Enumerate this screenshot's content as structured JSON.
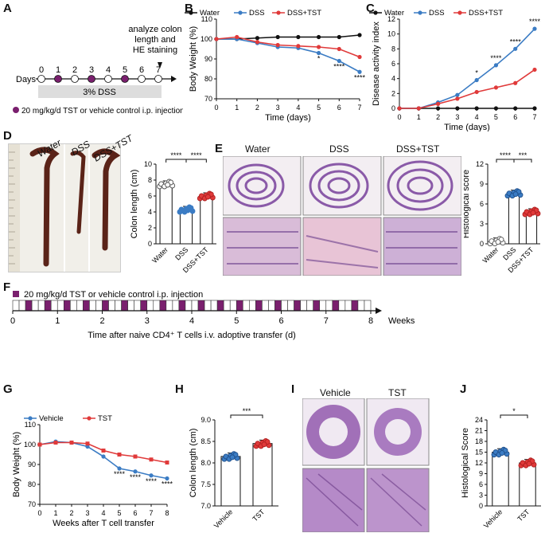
{
  "panel_labels": [
    "A",
    "B",
    "C",
    "D",
    "E",
    "F",
    "G",
    "H",
    "I",
    "J"
  ],
  "A": {
    "analyze": "analyze colon length and HE staining",
    "analyze_lines": [
      "analyze colon",
      "length and",
      "HE staining"
    ],
    "days_label": "Days",
    "days": [
      "0",
      "1",
      "2",
      "3",
      "4",
      "5",
      "6",
      "7"
    ],
    "injection_days": [
      1,
      3,
      5
    ],
    "dss_box": "3% DSS",
    "legend": "20 mg/kg/d TST or vehicle control i.p. injection"
  },
  "legend_top": {
    "water": "Water",
    "dss": "DSS",
    "dsstst": "DSS+TST"
  },
  "colors": {
    "water": "#111111",
    "dss": "#3b7cc4",
    "dsstst": "#e03a3a",
    "square": "#7a1f6e"
  },
  "chart_data": [
    {
      "id": "B",
      "type": "line",
      "ylabel": "Body Weight (%)",
      "xlabel": "Time (days)",
      "x": [
        0,
        1,
        2,
        3,
        4,
        5,
        6,
        7
      ],
      "ylim": [
        70,
        110
      ],
      "yticks": [
        70,
        80,
        90,
        100,
        110
      ],
      "series": [
        {
          "name": "Water",
          "values": [
            100,
            100,
            100.5,
            101,
            101,
            101,
            101,
            102
          ]
        },
        {
          "name": "DSS",
          "values": [
            100,
            100,
            98,
            96,
            95.5,
            93,
            89,
            83.5
          ]
        },
        {
          "name": "DSS+TST",
          "values": [
            100,
            101,
            98.5,
            97,
            96.5,
            96,
            95,
            91
          ]
        }
      ],
      "annotations": [
        "*",
        "****",
        "****"
      ]
    },
    {
      "id": "C",
      "type": "line",
      "ylabel": "Disease activity index",
      "xlabel": "Time (days)",
      "x": [
        0,
        1,
        2,
        3,
        4,
        5,
        6,
        7
      ],
      "ylim": [
        0,
        12
      ],
      "yticks": [
        0,
        2,
        4,
        6,
        8,
        10,
        12
      ],
      "series": [
        {
          "name": "Water",
          "values": [
            0,
            0,
            0,
            0,
            0,
            0,
            0,
            0
          ]
        },
        {
          "name": "DSS",
          "values": [
            0,
            0,
            0.8,
            1.8,
            3.8,
            5.8,
            8.0,
            10.7
          ]
        },
        {
          "name": "DSS+TST",
          "values": [
            0,
            0,
            0.6,
            1.3,
            2.2,
            2.8,
            3.4,
            5.2
          ]
        }
      ],
      "annotations": [
        "*",
        "****",
        "****",
        "****"
      ]
    },
    {
      "id": "D",
      "type": "bar",
      "ylabel": "Colon length (cm)",
      "categories": [
        "Water",
        "DSS",
        "DSS+TST"
      ],
      "values": [
        7.5,
        4.3,
        6.0
      ],
      "ylim": [
        0,
        10
      ],
      "yticks": [
        0,
        2,
        4,
        6,
        8,
        10
      ],
      "brackets": [
        "****",
        "****"
      ]
    },
    {
      "id": "E",
      "type": "bar",
      "ylabel": "Histological score",
      "categories": [
        "Water",
        "DSS",
        "DSS+TST"
      ],
      "values": [
        0.4,
        7.6,
        4.8
      ],
      "ylim": [
        0,
        12
      ],
      "yticks": [
        0,
        3,
        6,
        9,
        12
      ],
      "brackets": [
        "****",
        "***"
      ]
    },
    {
      "id": "G",
      "type": "line",
      "ylabel": "Body Weight (%)",
      "xlabel": "Weeks after T cell transfer",
      "x": [
        0,
        1,
        2,
        3,
        4,
        5,
        6,
        7,
        8
      ],
      "ylim": [
        70,
        110
      ],
      "yticks": [
        70,
        80,
        90,
        100,
        110
      ],
      "series": [
        {
          "name": "Vehicle",
          "values": [
            100,
            101.5,
            101,
            99,
            94,
            88,
            86.5,
            84.5,
            83
          ]
        },
        {
          "name": "TST",
          "values": [
            100,
            101,
            101,
            100.5,
            97,
            95,
            94,
            92.5,
            91
          ]
        }
      ],
      "annotations": [
        "****",
        "****",
        "****",
        "****"
      ]
    },
    {
      "id": "H",
      "type": "bar",
      "ylabel": "Colon length (cm)",
      "categories": [
        "Vehicle",
        "TST"
      ],
      "values": [
        8.15,
        8.45
      ],
      "ylim": [
        7.0,
        9.0
      ],
      "yticks": [
        "7.0",
        "7.5",
        "8.0",
        "8.5",
        "9.0"
      ],
      "brackets": [
        "***"
      ]
    },
    {
      "id": "J",
      "type": "bar",
      "ylabel": "Histological Score",
      "categories": [
        "Vehicle",
        "TST"
      ],
      "values": [
        15,
        12
      ],
      "ylim": [
        0,
        24
      ],
      "yticks": [
        0,
        3,
        6,
        9,
        12,
        15,
        18,
        21,
        24
      ],
      "brackets": [
        "*"
      ]
    }
  ],
  "D": {
    "labels": [
      "Water",
      "DSS",
      "DSS+TST"
    ]
  },
  "E": {
    "labels": [
      "Water",
      "DSS",
      "DSS+TST"
    ]
  },
  "F": {
    "legend": "20 mg/kg/d TST or vehicle control i.p. injection",
    "weeks": [
      "0",
      "1",
      "2",
      "3",
      "4",
      "5",
      "6",
      "7",
      "8"
    ],
    "weeks_label": "Weeks",
    "axis_title": "Time after naive CD4⁺ T cells i.v. adoptive transfer (d)"
  },
  "G": {
    "legend": {
      "vehicle": "Vehicle",
      "tst": "TST"
    }
  },
  "I": {
    "labels": [
      "Vehicle",
      "TST"
    ]
  }
}
